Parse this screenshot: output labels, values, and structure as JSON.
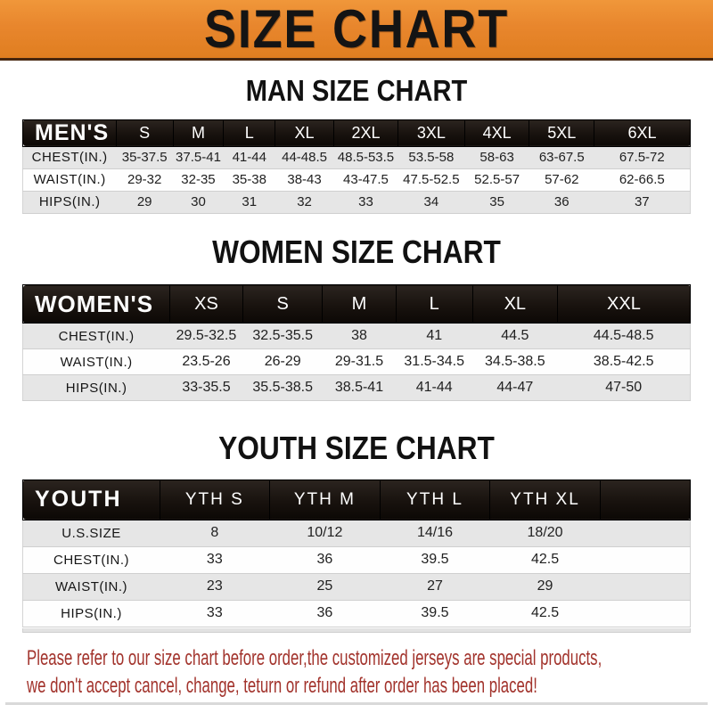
{
  "banner": {
    "title": "SIZE CHART"
  },
  "colors": {
    "banner_orange": "#e8862d",
    "header_bar_black": "#18120e",
    "row_gray": "#e6e6e6",
    "footer_red": "#a2332c"
  },
  "chart_data": [
    {
      "type": "table",
      "id": "men",
      "title": "MAN SIZE CHART",
      "corner_label": "MEN'S",
      "columns": [
        "S",
        "M",
        "L",
        "XL",
        "2XL",
        "3XL",
        "4XL",
        "5XL",
        "6XL"
      ],
      "rows": [
        {
          "label": "CHEST(IN.)",
          "values": [
            "35-37.5",
            "37.5-41",
            "41-44",
            "44-48.5",
            "48.5-53.5",
            "53.5-58",
            "58-63",
            "63-67.5",
            "67.5-72"
          ]
        },
        {
          "label": "WAIST(IN.)",
          "values": [
            "29-32",
            "32-35",
            "35-38",
            "38-43",
            "43-47.5",
            "47.5-52.5",
            "52.5-57",
            "57-62",
            "62-66.5"
          ]
        },
        {
          "label": "HIPS(IN.)",
          "values": [
            "29",
            "30",
            "31",
            "32",
            "33",
            "34",
            "35",
            "36",
            "37"
          ]
        }
      ]
    },
    {
      "type": "table",
      "id": "women",
      "title": "WOMEN SIZE CHART",
      "corner_label": "WOMEN'S",
      "columns": [
        "XS",
        "S",
        "M",
        "L",
        "XL",
        "XXL"
      ],
      "rows": [
        {
          "label": "CHEST(IN.)",
          "values": [
            "29.5-32.5",
            "32.5-35.5",
            "38",
            "41",
            "44.5",
            "44.5-48.5"
          ]
        },
        {
          "label": "WAIST(IN.)",
          "values": [
            "23.5-26",
            "26-29",
            "29-31.5",
            "31.5-34.5",
            "34.5-38.5",
            "38.5-42.5"
          ]
        },
        {
          "label": "HIPS(IN.)",
          "values": [
            "33-35.5",
            "35.5-38.5",
            "38.5-41",
            "41-44",
            "44-47",
            "47-50"
          ]
        }
      ]
    },
    {
      "type": "table",
      "id": "youth",
      "title": "YOUTH SIZE CHART",
      "corner_label": "YOUTH",
      "columns": [
        "YTH S",
        "YTH M",
        "YTH L",
        "YTH XL"
      ],
      "rows": [
        {
          "label": "U.S.SIZE",
          "values": [
            "8",
            "10/12",
            "14/16",
            "18/20"
          ]
        },
        {
          "label": "CHEST(IN.)",
          "values": [
            "33",
            "36",
            "39.5",
            "42.5"
          ]
        },
        {
          "label": "WAIST(IN.)",
          "values": [
            "23",
            "25",
            "27",
            "29"
          ]
        },
        {
          "label": "HIPS(IN.)",
          "values": [
            "33",
            "36",
            "39.5",
            "42.5"
          ]
        }
      ]
    }
  ],
  "footer": {
    "line1": "Please refer to our size chart before order,the customized jerseys are special products,",
    "line2": "we don't accept cancel, change, teturn or refund after order has been placed!"
  }
}
